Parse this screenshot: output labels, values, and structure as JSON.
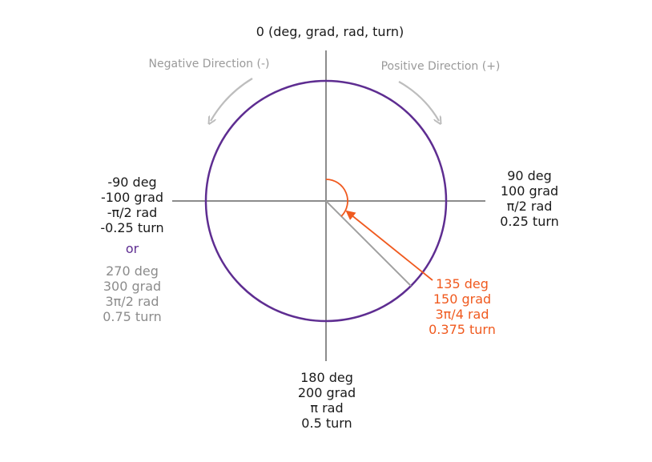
{
  "colors": {
    "circle": "#5e2d91",
    "axis": "#8c8c8c",
    "text": "#1a1a1a",
    "muted": "#8c8c8c",
    "accent": "#f05a1f",
    "direction_arrow": "#bdbdbd"
  },
  "labels": {
    "top": "0 (deg, grad, rad, turn)",
    "negative_direction": "Negative Direction (-)",
    "positive_direction": "Positive Direction (+)",
    "right": [
      "90 deg",
      "100 grad",
      "π/2 rad",
      "0.25 turn"
    ],
    "bottom": [
      "180 deg",
      "200 grad",
      "π rad",
      "0.5 turn"
    ],
    "left_negative": [
      "-90 deg",
      "-100 grad",
      "-π/2 rad",
      "-0.25 turn"
    ],
    "or": "or",
    "left_positive": [
      "270 deg",
      "300 grad",
      "3π/2 rad",
      "0.75 turn"
    ],
    "highlight": [
      "135 deg",
      "150 grad",
      "3π/4 rad",
      "0.375 turn"
    ]
  },
  "highlight_angle_deg": 135
}
